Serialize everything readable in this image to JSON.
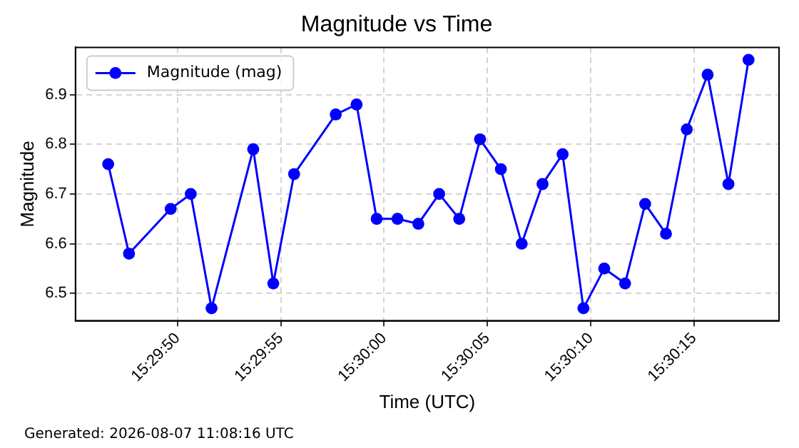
{
  "chart_data": {
    "type": "line",
    "title": "Magnitude vs Time",
    "xlabel": "Time (UTC)",
    "ylabel": "Magnitude",
    "annotations": [
      "Generated: 2026-08-07 11:08:16 UTC"
    ],
    "x": [
      15.49629,
      15.49657,
      15.49713,
      15.4974,
      15.49768,
      15.49824,
      15.49851,
      15.49879,
      15.49935,
      15.49963,
      15.4999,
      15.50018,
      15.50046,
      15.50074,
      15.50101,
      15.50129,
      15.50157,
      15.50185,
      15.50213,
      15.5024,
      15.50268,
      15.50296,
      15.50324,
      15.50351,
      15.50379,
      15.50407,
      15.50435,
      15.50463,
      15.5049
    ],
    "series": [
      {
        "name": "Magnitude (mag)",
        "color": "#0000ff",
        "values": [
          6.76,
          6.58,
          6.67,
          6.7,
          6.47,
          6.79,
          6.52,
          6.74,
          6.86,
          6.88,
          6.65,
          6.65,
          6.64,
          6.7,
          6.65,
          6.81,
          6.75,
          6.6,
          6.72,
          6.78,
          6.47,
          6.55,
          6.52,
          6.68,
          6.62,
          6.83,
          6.94,
          6.72,
          6.97
        ]
      }
    ],
    "xlim": [
      15.49585,
      15.50531
    ],
    "xticks": [
      {
        "value": 15.497222,
        "label": "15:29:50"
      },
      {
        "value": 15.498611,
        "label": "15:29:55"
      },
      {
        "value": 15.5,
        "label": "15:30:00"
      },
      {
        "value": 15.501389,
        "label": "15:30:05"
      },
      {
        "value": 15.502778,
        "label": "15:30:10"
      },
      {
        "value": 15.504167,
        "label": "15:30:15"
      }
    ],
    "ylim": [
      6.445,
      6.995
    ],
    "yticks": [
      6.5,
      6.6,
      6.7,
      6.8,
      6.9
    ],
    "grid": true,
    "legend": "top left",
    "marker": "circle",
    "line_style": "solid"
  }
}
